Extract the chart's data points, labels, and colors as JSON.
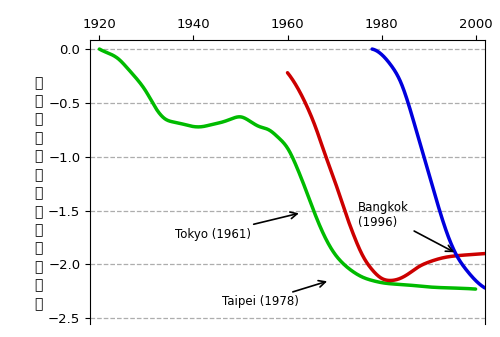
{
  "xlim": [
    1918,
    2002
  ],
  "ylim": [
    -2.55,
    0.08
  ],
  "yticks": [
    0,
    -0.5,
    -1.0,
    -1.5,
    -2.0,
    -2.5
  ],
  "xticks": [
    1920,
    1940,
    1960,
    1980,
    2000
  ],
  "grid_color": "#999999",
  "bg_color": "#ffffff",
  "tokyo_color": "#00bb00",
  "taipei_color": "#cc0000",
  "bangkok_color": "#0000dd",
  "ylabel_chars": [
    "地",
    "盤",
    "沈",
    "下",
    "の",
    "深",
    "さ",
    "（",
    "メ",
    "ー",
    "ト",
    "ル",
    "）"
  ],
  "tokyo_years": [
    1920,
    1922,
    1924,
    1926,
    1928,
    1930,
    1932,
    1934,
    1936,
    1938,
    1940,
    1942,
    1944,
    1946,
    1948,
    1950,
    1952,
    1954,
    1956,
    1958,
    1960,
    1962,
    1964,
    1966,
    1968,
    1970,
    1972,
    1974,
    1976,
    1978,
    1980,
    1985,
    1990,
    1995,
    2000
  ],
  "tokyo_depth": [
    0.0,
    -0.04,
    -0.09,
    -0.18,
    -0.28,
    -0.4,
    -0.55,
    -0.65,
    -0.68,
    -0.7,
    -0.72,
    -0.72,
    -0.7,
    -0.68,
    -0.65,
    -0.63,
    -0.67,
    -0.72,
    -0.75,
    -0.82,
    -0.92,
    -1.1,
    -1.32,
    -1.55,
    -1.75,
    -1.9,
    -2.0,
    -2.07,
    -2.12,
    -2.15,
    -2.17,
    -2.19,
    -2.21,
    -2.22,
    -2.23
  ],
  "taipei_years": [
    1960,
    1962,
    1964,
    1966,
    1968,
    1970,
    1972,
    1974,
    1976,
    1978,
    1980,
    1982,
    1984,
    1986,
    1988,
    1990,
    1993,
    1996,
    1999,
    2002
  ],
  "taipei_depth": [
    -0.22,
    -0.35,
    -0.52,
    -0.73,
    -0.98,
    -1.22,
    -1.48,
    -1.72,
    -1.92,
    -2.05,
    -2.13,
    -2.15,
    -2.13,
    -2.08,
    -2.02,
    -1.98,
    -1.94,
    -1.92,
    -1.91,
    -1.9
  ],
  "bangkok_years": [
    1978,
    1980,
    1982,
    1984,
    1986,
    1988,
    1990,
    1992,
    1994,
    1996,
    1998,
    2000,
    2002
  ],
  "bangkok_depth": [
    0.0,
    -0.05,
    -0.15,
    -0.3,
    -0.55,
    -0.85,
    -1.15,
    -1.45,
    -1.72,
    -1.92,
    -2.05,
    -2.15,
    -2.22
  ]
}
